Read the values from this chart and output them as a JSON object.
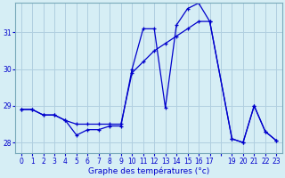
{
  "xlabel": "Graphe des températures (°c)",
  "background_color": "#d6eef5",
  "grid_color": "#b0cfe0",
  "line_color": "#0000cc",
  "ylim": [
    27.7,
    31.8
  ],
  "xlim": [
    -0.5,
    23.5
  ],
  "yticks": [
    28,
    29,
    30,
    31
  ],
  "xtick_labels": [
    "0",
    "1",
    "2",
    "3",
    "4",
    "5",
    "6",
    "7",
    "8",
    "9",
    "10",
    "11",
    "12",
    "13",
    "14",
    "15",
    "16",
    "17",
    "",
    "19",
    "20",
    "21",
    "22",
    "23"
  ],
  "xticks": [
    0,
    1,
    2,
    3,
    4,
    5,
    6,
    7,
    8,
    9,
    10,
    11,
    12,
    13,
    14,
    15,
    16,
    17,
    18,
    19,
    20,
    21,
    22,
    23
  ],
  "series1_x": [
    0,
    1,
    2,
    3,
    4,
    5,
    6,
    7,
    8,
    9,
    10,
    11,
    12,
    13,
    14,
    15,
    16,
    17,
    19,
    20,
    21,
    22,
    23
  ],
  "series1_y": [
    28.9,
    28.9,
    28.75,
    28.75,
    28.6,
    28.2,
    28.35,
    28.35,
    28.45,
    28.45,
    30.0,
    31.1,
    31.1,
    28.95,
    31.2,
    31.65,
    31.8,
    31.3,
    28.1,
    28.0,
    29.0,
    28.3,
    28.05
  ],
  "series2_x": [
    0,
    1,
    2,
    3,
    4,
    5,
    6,
    7,
    8,
    9,
    10,
    11,
    12,
    13,
    14,
    15,
    16,
    17,
    19,
    20,
    21,
    22,
    23
  ],
  "series2_y": [
    28.9,
    28.9,
    28.75,
    28.75,
    28.6,
    28.5,
    28.5,
    28.5,
    28.5,
    28.5,
    29.9,
    30.2,
    30.5,
    30.7,
    30.9,
    31.1,
    31.3,
    31.3,
    28.1,
    28.0,
    29.0,
    28.3,
    28.05
  ]
}
